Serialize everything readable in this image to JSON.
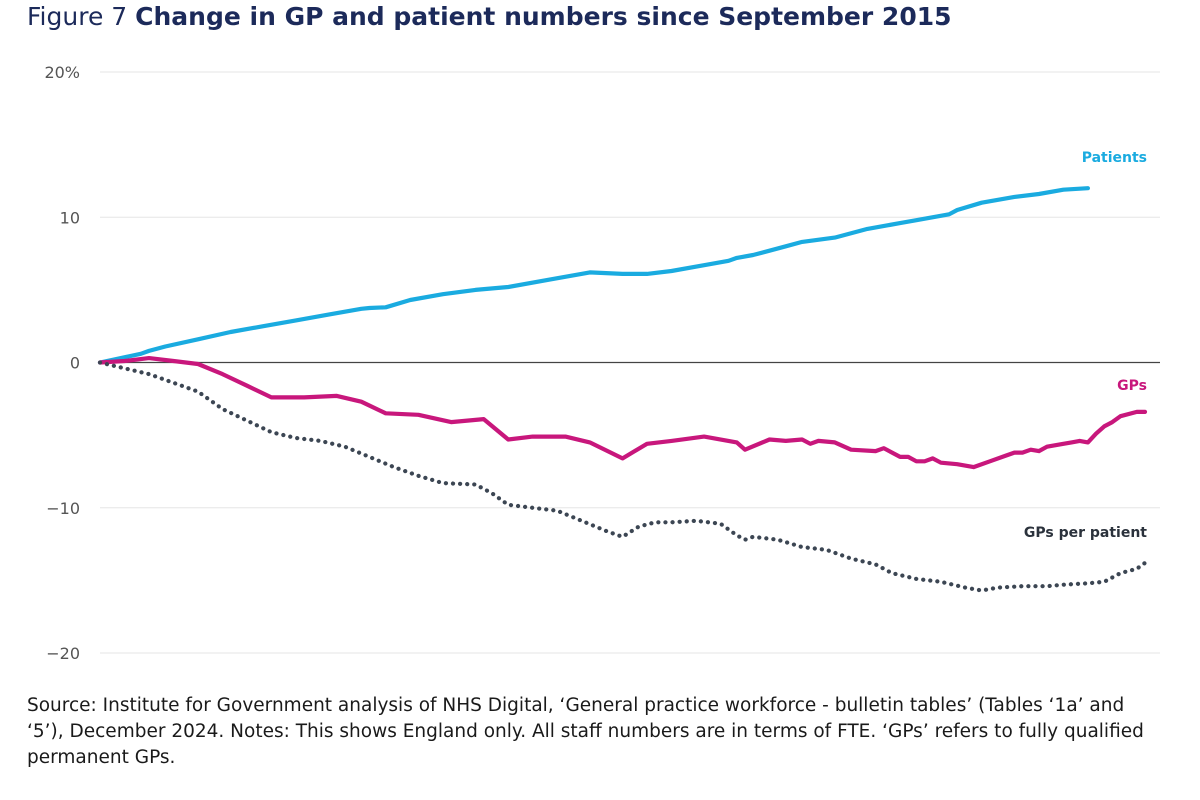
{
  "figure": {
    "number": "Figure 7",
    "title": "Change in GP and patient numbers since September 2015"
  },
  "chart_data": {
    "type": "line",
    "ylim": [
      -20,
      20
    ],
    "yticks": [
      {
        "value": 20,
        "label": "20%"
      },
      {
        "value": 10,
        "label": "10"
      },
      {
        "value": 0,
        "label": "0"
      },
      {
        "value": -10,
        "label": "−10"
      },
      {
        "value": -20,
        "label": "−20"
      }
    ],
    "x_count": 113,
    "xlabel": "",
    "ylabel": "",
    "grid": true,
    "series": [
      {
        "name": "Patients",
        "color": "#1aabe0",
        "style": "solid",
        "points": [
          [
            0,
            0
          ],
          [
            5,
            0.6
          ],
          [
            6,
            0.8
          ],
          [
            8,
            1.1
          ],
          [
            12,
            1.6
          ],
          [
            16,
            2.1
          ],
          [
            20,
            2.5
          ],
          [
            24,
            2.9
          ],
          [
            28,
            3.3
          ],
          [
            32,
            3.7
          ],
          [
            33,
            3.75
          ],
          [
            35,
            3.8
          ],
          [
            38,
            4.3
          ],
          [
            42,
            4.7
          ],
          [
            46,
            5.0
          ],
          [
            50,
            5.2
          ],
          [
            55,
            5.7
          ],
          [
            60,
            6.2
          ],
          [
            64,
            6.1
          ],
          [
            67,
            6.1
          ],
          [
            70,
            6.3
          ],
          [
            74,
            6.7
          ],
          [
            77,
            7.0
          ],
          [
            78,
            7.2
          ],
          [
            80,
            7.4
          ],
          [
            82,
            7.7
          ],
          [
            84,
            8.0
          ],
          [
            86,
            8.3
          ],
          [
            90,
            8.6
          ],
          [
            94,
            9.2
          ],
          [
            98,
            9.6
          ],
          [
            100,
            9.8
          ],
          [
            104,
            10.2
          ],
          [
            105,
            10.5
          ],
          [
            108,
            11.0
          ],
          [
            112,
            11.4
          ],
          [
            115,
            11.6
          ],
          [
            118,
            11.9
          ],
          [
            121,
            12.0
          ]
        ]
      },
      {
        "name": "GPs",
        "color": "#c8177c",
        "style": "solid",
        "points": [
          [
            0,
            0
          ],
          [
            3,
            0.1
          ],
          [
            6,
            0.3
          ],
          [
            9,
            0.1
          ],
          [
            12,
            -0.1
          ],
          [
            15,
            -0.8
          ],
          [
            18,
            -1.6
          ],
          [
            21,
            -2.4
          ],
          [
            25,
            -2.4
          ],
          [
            29,
            -2.3
          ],
          [
            32,
            -2.7
          ],
          [
            35,
            -3.5
          ],
          [
            39,
            -3.6
          ],
          [
            43,
            -4.1
          ],
          [
            47,
            -3.9
          ],
          [
            50,
            -5.3
          ],
          [
            53,
            -5.1
          ],
          [
            57,
            -5.1
          ],
          [
            60,
            -5.5
          ],
          [
            64,
            -6.6
          ],
          [
            67,
            -5.6
          ],
          [
            70,
            -5.4
          ],
          [
            74,
            -5.1
          ],
          [
            78,
            -5.5
          ],
          [
            79,
            -6.0
          ],
          [
            82,
            -5.3
          ],
          [
            84,
            -5.4
          ],
          [
            86,
            -5.3
          ],
          [
            87,
            -5.6
          ],
          [
            88,
            -5.4
          ],
          [
            90,
            -5.5
          ],
          [
            92,
            -6.0
          ],
          [
            95,
            -6.1
          ],
          [
            96,
            -5.9
          ],
          [
            98,
            -6.5
          ],
          [
            99,
            -6.5
          ],
          [
            100,
            -6.8
          ],
          [
            101,
            -6.8
          ],
          [
            102,
            -6.6
          ],
          [
            103,
            -6.9
          ],
          [
            105,
            -7.0
          ],
          [
            107,
            -7.2
          ],
          [
            109,
            -6.8
          ],
          [
            111,
            -6.4
          ],
          [
            112,
            -6.2
          ],
          [
            113,
            -6.2
          ],
          [
            114,
            -6.0
          ],
          [
            115,
            -6.1
          ],
          [
            116,
            -5.8
          ],
          [
            118,
            -5.6
          ],
          [
            119,
            -5.5
          ],
          [
            120,
            -5.4
          ],
          [
            121,
            -5.5
          ],
          [
            122,
            -4.9
          ],
          [
            123,
            -4.4
          ],
          [
            124,
            -4.1
          ],
          [
            125,
            -3.7
          ],
          [
            127,
            -3.4
          ],
          [
            128,
            -3.4
          ]
        ]
      },
      {
        "name": "GPs per patient",
        "color": "#3c4653",
        "style": "dotted",
        "points": [
          [
            0,
            0
          ],
          [
            3,
            -0.4
          ],
          [
            6,
            -0.8
          ],
          [
            9,
            -1.4
          ],
          [
            12,
            -2.0
          ],
          [
            15,
            -3.2
          ],
          [
            18,
            -4.0
          ],
          [
            21,
            -4.8
          ],
          [
            24,
            -5.2
          ],
          [
            27,
            -5.4
          ],
          [
            30,
            -5.8
          ],
          [
            33,
            -6.5
          ],
          [
            36,
            -7.2
          ],
          [
            39,
            -7.8
          ],
          [
            42,
            -8.3
          ],
          [
            46,
            -8.4
          ],
          [
            48,
            -9.0
          ],
          [
            50,
            -9.8
          ],
          [
            53,
            -10.0
          ],
          [
            56,
            -10.2
          ],
          [
            59,
            -10.9
          ],
          [
            62,
            -11.6
          ],
          [
            64,
            -12.0
          ],
          [
            66,
            -11.3
          ],
          [
            68,
            -11.0
          ],
          [
            70,
            -11.0
          ],
          [
            73,
            -10.9
          ],
          [
            76,
            -11.1
          ],
          [
            78,
            -11.9
          ],
          [
            79,
            -12.2
          ],
          [
            80,
            -12.0
          ],
          [
            83,
            -12.2
          ],
          [
            86,
            -12.7
          ],
          [
            89,
            -12.9
          ],
          [
            92,
            -13.5
          ],
          [
            95,
            -13.9
          ],
          [
            97,
            -14.5
          ],
          [
            100,
            -14.9
          ],
          [
            103,
            -15.1
          ],
          [
            106,
            -15.5
          ],
          [
            108,
            -15.7
          ],
          [
            110,
            -15.5
          ],
          [
            113,
            -15.4
          ],
          [
            116,
            -15.4
          ],
          [
            118,
            -15.3
          ],
          [
            121,
            -15.2
          ],
          [
            123,
            -15.1
          ],
          [
            125,
            -14.5
          ],
          [
            127,
            -14.2
          ],
          [
            128,
            -13.8
          ]
        ]
      }
    ],
    "x_max_index": 128
  },
  "source_note": "Source: Institute for Government analysis of NHS Digital, ‘General practice workforce - bulletin tables’ (Tables ‘1a’ and ‘5’), December 2024. Notes: This shows England only. All staff numbers are in terms of FTE. ‘GPs’ refers to fully qualified permanent GPs."
}
